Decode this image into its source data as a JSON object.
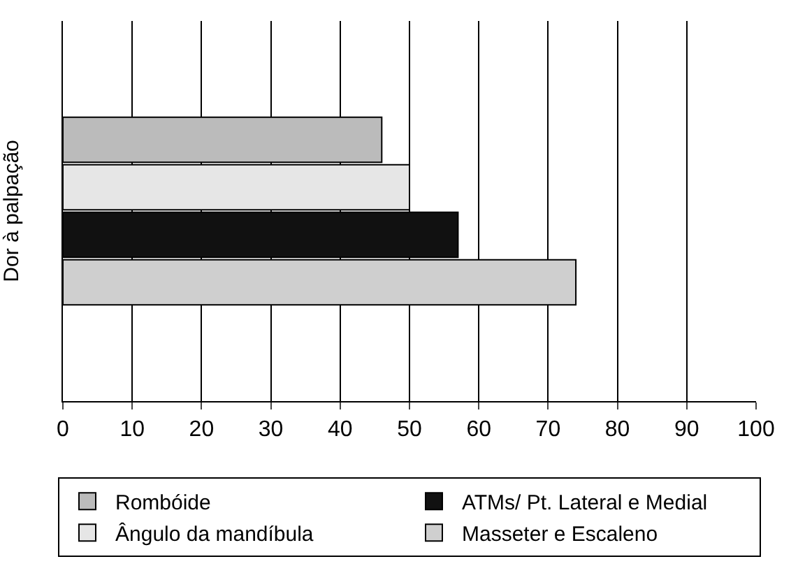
{
  "chart_data": {
    "type": "bar",
    "orientation": "horizontal",
    "ylabel": "Dor à palpação",
    "categories": [
      null
    ],
    "series": [
      {
        "name": "Rombóide",
        "color": "#bbbbbb",
        "values": [
          46
        ]
      },
      {
        "name": "Ângulo da mandíbula",
        "color": "#e6e6e6",
        "values": [
          50
        ]
      },
      {
        "name": "ATMs/ Pt. Lateral e Medial",
        "color": "#111111",
        "values": [
          57
        ]
      },
      {
        "name": "Masseter e Escaleno",
        "color": "#cfcfcf",
        "values": [
          74
        ]
      }
    ],
    "xlim": [
      0,
      100
    ],
    "xticks": [
      0,
      10,
      20,
      30,
      40,
      50,
      60,
      70,
      80,
      90,
      100
    ],
    "grid": "x",
    "legend": "bottom"
  }
}
